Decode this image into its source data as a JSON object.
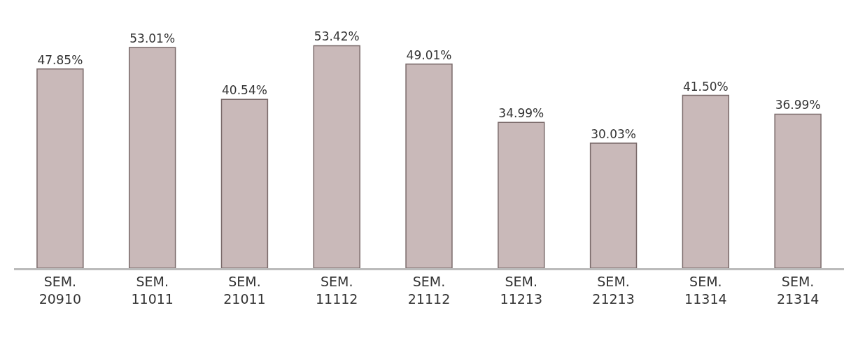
{
  "chart_data": {
    "type": "bar",
    "categories": [
      "SEM.\n20910",
      "SEM.\n11011",
      "SEM.\n21011",
      "SEM.\n11112",
      "SEM.\n21112",
      "SEM.\n11213",
      "SEM.\n21213",
      "SEM.\n11314",
      "SEM.\n21314"
    ],
    "values": [
      47.85,
      53.01,
      40.54,
      53.42,
      49.01,
      34.99,
      30.03,
      41.5,
      36.99
    ],
    "value_labels": [
      "47.85%",
      "53.01%",
      "40.54%",
      "53.42%",
      "49.01%",
      "34.99%",
      "30.03%",
      "41.50%",
      "36.99%"
    ],
    "color": "#c9b9b9"
  }
}
